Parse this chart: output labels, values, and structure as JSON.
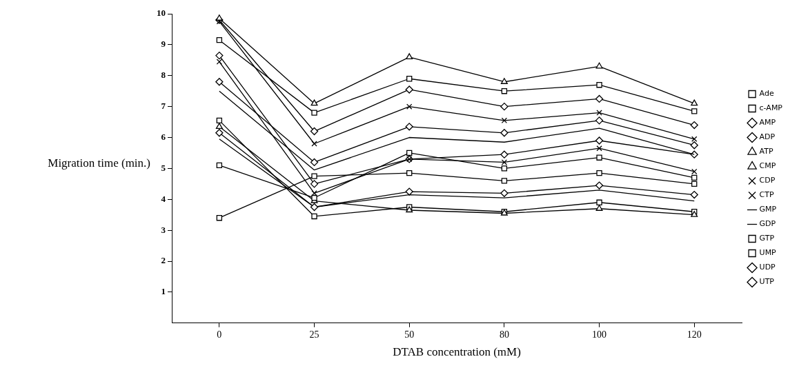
{
  "chart_data": {
    "type": "line",
    "xlabel": "DTAB concentration (mM)",
    "ylabel": "Migration time (min.)",
    "categories": [
      "0",
      "25",
      "50",
      "80",
      "100",
      "120"
    ],
    "ylim": [
      0,
      10
    ],
    "yticks": [
      1,
      2,
      3,
      4,
      5,
      6,
      7,
      8,
      9,
      10
    ],
    "grid": false,
    "legend": "right",
    "line_style": "solid",
    "series": [
      {
        "name": "Ade",
        "color": "#000000",
        "marker": "square",
        "values": [
          3.4,
          4.75,
          4.85,
          4.6,
          4.85,
          4.5
        ]
      },
      {
        "name": "c-AMP",
        "color": "#000000",
        "marker": "square",
        "values": [
          5.1,
          4.05,
          5.5,
          5.0,
          5.35,
          4.7
        ]
      },
      {
        "name": "AMP",
        "color": "#000000",
        "marker": "diamond",
        "values": [
          6.15,
          3.75,
          4.25,
          4.2,
          4.45,
          4.15
        ]
      },
      {
        "name": "ADP",
        "color": "#000000",
        "marker": "diamond",
        "values": [
          7.8,
          5.2,
          6.35,
          6.15,
          6.55,
          5.75
        ]
      },
      {
        "name": "ATP",
        "color": "#000000",
        "marker": "triangle",
        "values": [
          9.85,
          7.1,
          8.6,
          7.8,
          8.3,
          7.1
        ]
      },
      {
        "name": "CMP",
        "color": "#000000",
        "marker": "triangle",
        "values": [
          6.35,
          3.95,
          3.65,
          3.55,
          3.7,
          3.5
        ]
      },
      {
        "name": "CDP",
        "color": "#000000",
        "marker": "cross",
        "values": [
          8.45,
          4.2,
          5.3,
          5.2,
          5.65,
          4.9
        ]
      },
      {
        "name": "CTP",
        "color": "#000000",
        "marker": "cross",
        "values": [
          9.75,
          5.8,
          7.0,
          6.55,
          6.8,
          5.95
        ]
      },
      {
        "name": "GMP",
        "color": "#000000",
        "marker": "none",
        "values": [
          5.95,
          3.75,
          4.15,
          4.05,
          4.3,
          3.95
        ]
      },
      {
        "name": "GDP",
        "color": "#000000",
        "marker": "none",
        "values": [
          7.5,
          4.95,
          6.0,
          5.85,
          6.3,
          5.45
        ]
      },
      {
        "name": "GTP",
        "color": "#000000",
        "marker": "square",
        "values": [
          9.15,
          6.8,
          7.9,
          7.5,
          7.7,
          6.85
        ]
      },
      {
        "name": "UMP",
        "color": "#000000",
        "marker": "square",
        "values": [
          6.55,
          3.45,
          3.75,
          3.6,
          3.9,
          3.6
        ]
      },
      {
        "name": "UDP",
        "color": "#000000",
        "marker": "diamond",
        "values": [
          8.65,
          4.5,
          5.3,
          5.45,
          5.9,
          5.45
        ]
      },
      {
        "name": "UTP",
        "color": "#000000",
        "marker": "diamond",
        "values": [
          9.8,
          6.2,
          7.55,
          7.0,
          7.25,
          6.4
        ]
      }
    ]
  }
}
